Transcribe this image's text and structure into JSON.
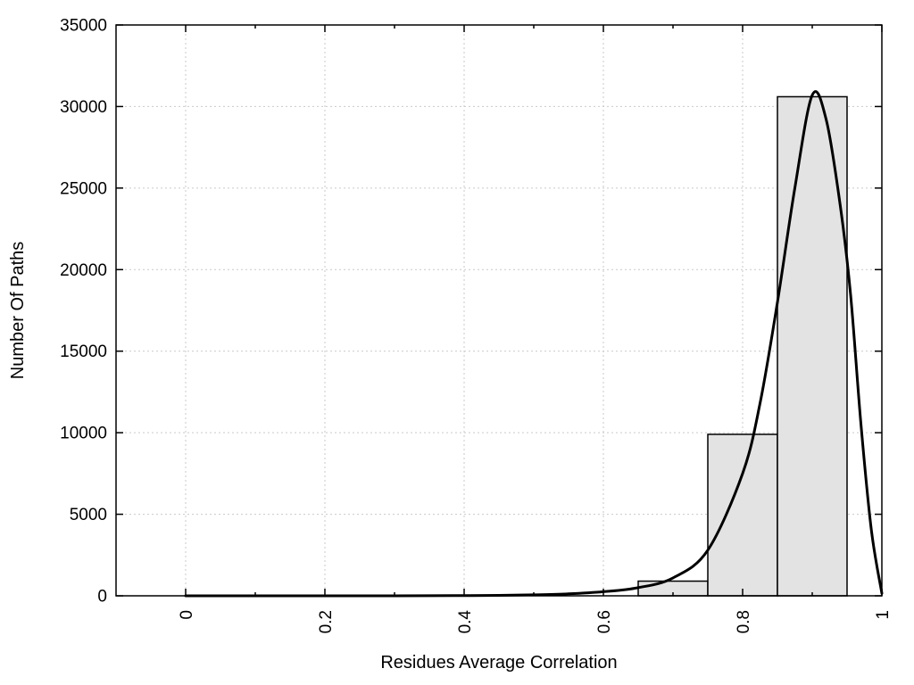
{
  "chart_data": {
    "type": "bar",
    "subtype": "histogram-with-density-curve",
    "title": "",
    "xlabel": "Residues Average Correlation",
    "ylabel": "Number Of Paths",
    "xlim": [
      -0.1,
      1.0
    ],
    "ylim": [
      0,
      35000
    ],
    "grid": true,
    "legend_position": "none",
    "xtick_values": [
      0,
      0.2,
      0.4,
      0.6,
      0.8,
      1
    ],
    "xtick_labels": [
      "0",
      "0.2",
      "0.4",
      "0.6",
      "0.8",
      "1"
    ],
    "xtick_minor_values": [
      0.1,
      0.3,
      0.5,
      0.7,
      0.9
    ],
    "ytick_values": [
      0,
      5000,
      10000,
      15000,
      20000,
      25000,
      30000,
      35000
    ],
    "ytick_labels": [
      "0",
      "5000",
      "10000",
      "15000",
      "20000",
      "25000",
      "30000",
      "35000"
    ],
    "bars": [
      {
        "x0": 0.65,
        "x1": 0.75,
        "count": 900
      },
      {
        "x0": 0.75,
        "x1": 0.85,
        "count": 9900
      },
      {
        "x0": 0.85,
        "x1": 0.95,
        "count": 30600
      }
    ],
    "curve": [
      [
        0.0,
        0
      ],
      [
        0.05,
        0
      ],
      [
        0.1,
        0
      ],
      [
        0.15,
        0
      ],
      [
        0.2,
        0
      ],
      [
        0.25,
        0
      ],
      [
        0.3,
        0
      ],
      [
        0.35,
        5
      ],
      [
        0.4,
        15
      ],
      [
        0.45,
        30
      ],
      [
        0.5,
        60
      ],
      [
        0.55,
        120
      ],
      [
        0.6,
        250
      ],
      [
        0.65,
        500
      ],
      [
        0.7,
        1100
      ],
      [
        0.75,
        2800
      ],
      [
        0.8,
        7500
      ],
      [
        0.825,
        11800
      ],
      [
        0.85,
        18000
      ],
      [
        0.875,
        25000
      ],
      [
        0.9,
        30700
      ],
      [
        0.92,
        29200
      ],
      [
        0.94,
        24000
      ],
      [
        0.955,
        18500
      ],
      [
        0.97,
        10500
      ],
      [
        0.985,
        4000
      ],
      [
        1.0,
        150
      ]
    ],
    "colors": {
      "background": "#ffffff",
      "bar_fill": "#e3e3e3",
      "bar_stroke": "#000000",
      "curve": "#000000",
      "grid": "#c9c9c9",
      "axis": "#000000"
    }
  }
}
